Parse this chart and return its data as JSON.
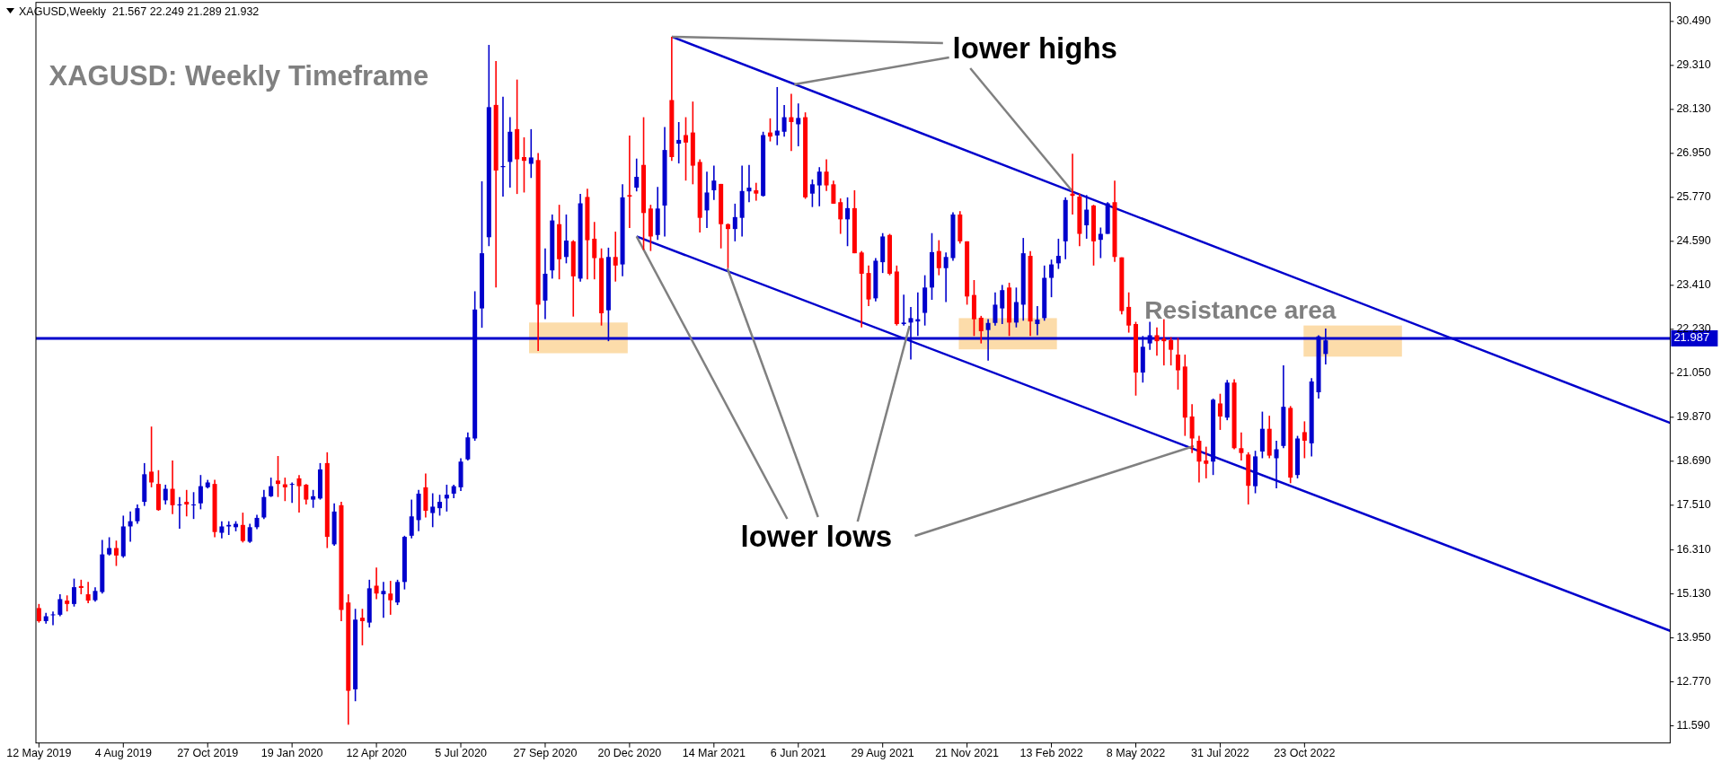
{
  "chart_data": {
    "type": "candlestick",
    "title": "XAGUSD: Weekly Timeframe",
    "subtitle": "XAGUSD,Weekly  21.567 22.249 21.289 21.932",
    "annotations": [
      {
        "text": "lower highs",
        "x": "2021-01-31",
        "y": 30.08
      },
      {
        "text": "lower lows",
        "x": "2020-12-27",
        "y": 24.72
      },
      "Resistance area"
    ],
    "x": [
      "2019-05-12",
      "2019-05-19",
      "2019-05-26",
      "2019-06-02",
      "2019-06-09",
      "2019-06-16",
      "2019-06-23",
      "2019-06-30",
      "2019-07-07",
      "2019-07-14",
      "2019-07-21",
      "2019-07-28",
      "2019-08-04",
      "2019-08-11",
      "2019-08-18",
      "2019-08-25",
      "2019-09-01",
      "2019-09-08",
      "2019-09-15",
      "2019-09-22",
      "2019-09-29",
      "2019-10-06",
      "2019-10-13",
      "2019-10-20",
      "2019-10-27",
      "2019-11-03",
      "2019-11-10",
      "2019-11-17",
      "2019-11-24",
      "2019-12-01",
      "2019-12-08",
      "2019-12-15",
      "2019-12-22",
      "2019-12-29",
      "2020-01-05",
      "2020-01-12",
      "2020-01-19",
      "2020-01-26",
      "2020-02-02",
      "2020-02-09",
      "2020-02-16",
      "2020-02-23",
      "2020-03-01",
      "2020-03-08",
      "2020-03-15",
      "2020-03-22",
      "2020-03-29",
      "2020-04-05",
      "2020-04-12",
      "2020-04-19",
      "2020-04-26",
      "2020-05-03",
      "2020-05-10",
      "2020-05-17",
      "2020-05-24",
      "2020-05-31",
      "2020-06-07",
      "2020-06-14",
      "2020-06-21",
      "2020-06-28",
      "2020-07-05",
      "2020-07-12",
      "2020-07-19",
      "2020-07-26",
      "2020-08-02",
      "2020-08-09",
      "2020-08-16",
      "2020-08-23",
      "2020-08-30",
      "2020-09-06",
      "2020-09-13",
      "2020-09-20",
      "2020-09-27",
      "2020-10-04",
      "2020-10-11",
      "2020-10-18",
      "2020-10-25",
      "2020-11-01",
      "2020-11-08",
      "2020-11-15",
      "2020-11-22",
      "2020-11-29",
      "2020-12-06",
      "2020-12-13",
      "2020-12-20",
      "2020-12-27",
      "2021-01-03",
      "2021-01-10",
      "2021-01-17",
      "2021-01-24",
      "2021-01-31",
      "2021-02-07",
      "2021-02-14",
      "2021-02-21",
      "2021-02-28",
      "2021-03-07",
      "2021-03-14",
      "2021-03-21",
      "2021-03-28",
      "2021-04-04",
      "2021-04-11",
      "2021-04-18",
      "2021-04-25",
      "2021-05-02",
      "2021-05-09",
      "2021-05-16",
      "2021-05-23",
      "2021-05-30",
      "2021-06-06",
      "2021-06-13",
      "2021-06-20",
      "2021-06-27",
      "2021-07-04",
      "2021-07-11",
      "2021-07-18",
      "2021-07-25",
      "2021-08-01",
      "2021-08-08",
      "2021-08-15",
      "2021-08-22",
      "2021-08-29",
      "2021-09-05",
      "2021-09-12",
      "2021-09-19",
      "2021-09-26",
      "2021-10-03",
      "2021-10-10",
      "2021-10-17",
      "2021-10-24",
      "2021-10-31",
      "2021-11-07",
      "2021-11-14",
      "2021-11-21",
      "2021-11-28",
      "2021-12-05",
      "2021-12-12",
      "2021-12-19",
      "2021-12-26",
      "2022-01-02",
      "2022-01-09",
      "2022-01-16",
      "2022-01-23",
      "2022-01-30",
      "2022-02-06",
      "2022-02-13",
      "2022-02-20",
      "2022-02-27",
      "2022-03-06",
      "2022-03-13",
      "2022-03-20",
      "2022-03-27",
      "2022-04-03",
      "2022-04-10",
      "2022-04-17",
      "2022-04-24",
      "2022-05-01",
      "2022-05-08",
      "2022-05-15",
      "2022-05-22",
      "2022-05-29",
      "2022-06-05",
      "2022-06-12",
      "2022-06-19",
      "2022-06-26",
      "2022-07-03",
      "2022-07-10",
      "2022-07-17",
      "2022-07-24",
      "2022-07-31",
      "2022-08-07",
      "2022-08-14",
      "2022-08-21",
      "2022-08-28",
      "2022-09-04",
      "2022-09-11",
      "2022-09-18",
      "2022-09-25",
      "2022-10-02",
      "2022-10-09",
      "2022-10-16",
      "2022-10-23",
      "2022-10-30",
      "2022-11-06",
      "2022-11-13"
    ],
    "ohlc": [
      [
        14.75,
        14.86,
        14.36,
        14.4
      ],
      [
        14.4,
        14.62,
        14.33,
        14.53
      ],
      [
        14.56,
        14.66,
        14.29,
        14.58
      ],
      [
        14.57,
        15.12,
        14.53,
        14.99
      ],
      [
        14.95,
        15.09,
        14.66,
        14.86
      ],
      [
        14.86,
        15.54,
        14.79,
        15.31
      ],
      [
        15.34,
        15.51,
        15.12,
        15.29
      ],
      [
        15.12,
        15.45,
        14.88,
        14.95
      ],
      [
        14.96,
        15.31,
        14.92,
        15.21
      ],
      [
        15.18,
        16.58,
        15.14,
        16.19
      ],
      [
        16.19,
        16.65,
        16.16,
        16.36
      ],
      [
        16.36,
        16.56,
        15.88,
        16.16
      ],
      [
        16.14,
        17.23,
        16.1,
        16.94
      ],
      [
        16.94,
        17.34,
        16.53,
        17.08
      ],
      [
        17.08,
        17.53,
        17.01,
        17.43
      ],
      [
        17.6,
        18.64,
        17.49,
        18.34
      ],
      [
        18.41,
        19.62,
        17.99,
        18.12
      ],
      [
        18.08,
        18.45,
        17.36,
        17.38
      ],
      [
        17.64,
        18.06,
        17.53,
        17.95
      ],
      [
        17.95,
        18.71,
        17.27,
        17.51
      ],
      [
        17.51,
        17.73,
        16.88,
        17.53
      ],
      [
        17.6,
        17.92,
        17.21,
        17.53
      ],
      [
        17.51,
        17.86,
        17.14,
        17.53
      ],
      [
        17.56,
        18.32,
        17.4,
        18.02
      ],
      [
        17.99,
        18.19,
        17.96,
        18.12
      ],
      [
        18.08,
        18.19,
        16.65,
        16.79
      ],
      [
        16.77,
        17.08,
        16.62,
        16.94
      ],
      [
        16.94,
        17.08,
        16.71,
        16.98
      ],
      [
        16.92,
        17.08,
        16.81,
        17.01
      ],
      [
        16.98,
        17.31,
        16.51,
        16.55
      ],
      [
        16.53,
        17.01,
        16.5,
        16.92
      ],
      [
        16.92,
        17.25,
        16.87,
        17.17
      ],
      [
        17.18,
        17.92,
        17.14,
        17.73
      ],
      [
        17.75,
        18.25,
        17.73,
        18.02
      ],
      [
        18.17,
        18.83,
        17.73,
        18.08
      ],
      [
        18.07,
        18.25,
        17.62,
        17.99
      ],
      [
        18.06,
        18.12,
        17.57,
        18.08
      ],
      [
        18.23,
        18.32,
        17.31,
        18.02
      ],
      [
        18.06,
        18.08,
        17.53,
        17.66
      ],
      [
        17.66,
        17.92,
        17.44,
        17.75
      ],
      [
        17.69,
        18.64,
        17.66,
        18.47
      ],
      [
        18.64,
        18.93,
        16.36,
        16.66
      ],
      [
        16.46,
        17.56,
        16.42,
        17.34
      ],
      [
        17.51,
        17.6,
        14.4,
        14.7
      ],
      [
        14.9,
        15.12,
        11.62,
        12.53
      ],
      [
        12.57,
        14.73,
        12.25,
        14.44
      ],
      [
        14.49,
        14.73,
        13.75,
        14.4
      ],
      [
        14.36,
        15.51,
        14.23,
        15.28
      ],
      [
        15.35,
        15.84,
        14.99,
        15.14
      ],
      [
        15.12,
        15.45,
        14.49,
        15.21
      ],
      [
        15.14,
        15.48,
        14.57,
        14.96
      ],
      [
        14.9,
        15.51,
        14.83,
        15.45
      ],
      [
        15.45,
        16.69,
        15.25,
        16.66
      ],
      [
        16.69,
        17.66,
        16.62,
        17.21
      ],
      [
        17.11,
        17.92,
        16.81,
        17.82
      ],
      [
        17.99,
        18.36,
        17.18,
        17.36
      ],
      [
        17.3,
        17.83,
        16.92,
        17.47
      ],
      [
        17.43,
        17.79,
        17.23,
        17.6
      ],
      [
        17.69,
        18.06,
        17.34,
        17.79
      ],
      [
        17.82,
        18.06,
        17.7,
        18.02
      ],
      [
        17.99,
        18.77,
        17.89,
        18.68
      ],
      [
        18.74,
        19.46,
        18.71,
        19.33
      ],
      [
        19.3,
        23.25,
        19.24,
        22.76
      ],
      [
        22.79,
        26.2,
        22.27,
        24.27
      ],
      [
        24.7,
        29.86,
        24.46,
        28.19
      ],
      [
        28.25,
        29.43,
        23.35,
        26.49
      ],
      [
        26.58,
        28.47,
        25.79,
        26.61
      ],
      [
        26.72,
        27.92,
        26.03,
        27.53
      ],
      [
        27.6,
        28.93,
        25.86,
        26.79
      ],
      [
        26.85,
        27.38,
        25.9,
        26.75
      ],
      [
        26.67,
        27.6,
        26.29,
        26.84
      ],
      [
        26.77,
        26.96,
        21.65,
        22.89
      ],
      [
        23.0,
        24.4,
        22.5,
        23.72
      ],
      [
        23.81,
        25.31,
        23.59,
        25.15
      ],
      [
        25.05,
        25.57,
        23.57,
        24.11
      ],
      [
        24.17,
        25.31,
        24.0,
        24.61
      ],
      [
        24.59,
        24.62,
        22.57,
        23.65
      ],
      [
        23.59,
        25.86,
        23.51,
        25.61
      ],
      [
        25.78,
        26.0,
        23.57,
        24.62
      ],
      [
        24.66,
        25.11,
        23.57,
        24.14
      ],
      [
        24.14,
        24.4,
        22.33,
        22.66
      ],
      [
        22.74,
        24.42,
        21.91,
        24.17
      ],
      [
        24.17,
        24.85,
        23.51,
        23.94
      ],
      [
        23.97,
        26.12,
        23.65,
        25.77
      ],
      [
        25.83,
        27.43,
        24.95,
        25.79
      ],
      [
        26.03,
        26.81,
        25.93,
        26.32
      ],
      [
        26.64,
        27.92,
        24.36,
        25.35
      ],
      [
        25.47,
        25.57,
        24.33,
        24.72
      ],
      [
        24.76,
        26.05,
        24.63,
        25.47
      ],
      [
        25.55,
        27.66,
        24.72,
        27.04
      ],
      [
        28.38,
        30.08,
        26.75,
        26.85
      ],
      [
        27.21,
        27.79,
        26.68,
        27.31
      ],
      [
        27.44,
        27.92,
        26.22,
        27.24
      ],
      [
        27.51,
        28.34,
        26.12,
        26.62
      ],
      [
        26.72,
        26.79,
        24.83,
        25.22
      ],
      [
        25.42,
        26.46,
        24.95,
        25.9
      ],
      [
        25.96,
        26.62,
        25.7,
        26.22
      ],
      [
        26.13,
        26.13,
        24.4,
        25.05
      ],
      [
        25.05,
        25.07,
        23.87,
        24.92
      ],
      [
        24.92,
        25.6,
        24.59,
        25.24
      ],
      [
        25.22,
        26.62,
        24.72,
        25.94
      ],
      [
        25.93,
        26.64,
        25.64,
        26.03
      ],
      [
        25.96,
        26.16,
        25.68,
        25.87
      ],
      [
        25.81,
        27.53,
        25.79,
        27.44
      ],
      [
        27.51,
        27.89,
        27.27,
        27.4
      ],
      [
        27.43,
        28.73,
        27.17,
        27.56
      ],
      [
        27.53,
        28.25,
        27.4,
        27.92
      ],
      [
        27.92,
        28.55,
        27.01,
        27.79
      ],
      [
        27.73,
        28.29,
        27.14,
        27.9
      ],
      [
        27.92,
        28.05,
        25.73,
        25.77
      ],
      [
        25.87,
        26.25,
        25.51,
        26.12
      ],
      [
        26.09,
        26.58,
        25.53,
        26.46
      ],
      [
        26.46,
        26.79,
        25.94,
        26.09
      ],
      [
        26.12,
        26.22,
        25.6,
        25.6
      ],
      [
        25.64,
        25.74,
        24.79,
        25.18
      ],
      [
        25.18,
        25.77,
        24.46,
        25.48
      ],
      [
        25.48,
        25.96,
        24.27,
        24.27
      ],
      [
        24.29,
        24.33,
        22.28,
        23.72
      ],
      [
        23.74,
        23.94,
        22.85,
        23.03
      ],
      [
        23.06,
        24.14,
        22.98,
        24.07
      ],
      [
        24.03,
        24.81,
        23.74,
        24.72
      ],
      [
        24.76,
        24.79,
        23.68,
        23.72
      ],
      [
        23.78,
        23.94,
        22.33,
        22.37
      ],
      [
        22.37,
        23.16,
        22.33,
        22.41
      ],
      [
        22.41,
        22.83,
        21.42,
        22.53
      ],
      [
        22.44,
        23.22,
        22.05,
        22.5
      ],
      [
        22.67,
        23.68,
        22.33,
        23.35
      ],
      [
        23.35,
        24.81,
        23.02,
        24.3
      ],
      [
        24.33,
        24.62,
        23.68,
        23.87
      ],
      [
        23.87,
        24.29,
        22.96,
        24.17
      ],
      [
        24.14,
        25.37,
        24.07,
        25.31
      ],
      [
        25.31,
        25.4,
        24.53,
        24.59
      ],
      [
        24.59,
        24.59,
        22.89,
        23.11
      ],
      [
        23.15,
        23.55,
        22.05,
        22.5
      ],
      [
        22.54,
        22.59,
        21.85,
        22.18
      ],
      [
        22.21,
        22.5,
        21.39,
        22.4
      ],
      [
        22.4,
        23.22,
        22.33,
        22.89
      ],
      [
        22.79,
        23.42,
        22.37,
        23.28
      ],
      [
        23.35,
        23.48,
        22.05,
        22.41
      ],
      [
        22.41,
        23.35,
        22.28,
        22.96
      ],
      [
        22.89,
        24.68,
        22.46,
        24.27
      ],
      [
        24.2,
        24.33,
        22.05,
        22.44
      ],
      [
        22.37,
        22.85,
        22.07,
        22.49
      ],
      [
        22.53,
        23.94,
        22.46,
        23.61
      ],
      [
        23.61,
        24.1,
        23.09,
        23.97
      ],
      [
        24.0,
        24.66,
        23.85,
        24.2
      ],
      [
        24.59,
        25.77,
        24.11,
        25.7
      ],
      [
        25.87,
        26.94,
        25.31,
        25.81
      ],
      [
        25.79,
        25.87,
        24.46,
        24.79
      ],
      [
        25.02,
        25.83,
        24.66,
        25.44
      ],
      [
        25.55,
        25.57,
        23.94,
        24.59
      ],
      [
        24.63,
        24.96,
        24.14,
        24.79
      ],
      [
        24.79,
        25.64,
        24.79,
        25.61
      ],
      [
        25.64,
        26.22,
        24.04,
        24.17
      ],
      [
        24.16,
        24.16,
        22.63,
        22.72
      ],
      [
        22.83,
        23.22,
        22.14,
        22.33
      ],
      [
        22.37,
        22.43,
        20.45,
        21.07
      ],
      [
        21.07,
        22.05,
        20.8,
        21.76
      ],
      [
        21.85,
        22.43,
        21.68,
        22.07
      ],
      [
        22.07,
        22.28,
        21.52,
        21.91
      ],
      [
        21.98,
        22.5,
        21.26,
        21.91
      ],
      [
        21.94,
        22.02,
        21.26,
        21.68
      ],
      [
        21.55,
        22.0,
        20.61,
        21.13
      ],
      [
        21.23,
        21.55,
        19.37,
        19.86
      ],
      [
        19.89,
        20.22,
        18.91,
        19.3
      ],
      [
        19.24,
        19.37,
        18.12,
        18.68
      ],
      [
        18.71,
        19.08,
        18.23,
        18.62
      ],
      [
        18.68,
        20.37,
        18.32,
        20.34
      ],
      [
        20.24,
        20.5,
        19.53,
        19.89
      ],
      [
        19.86,
        20.87,
        19.79,
        20.8
      ],
      [
        20.8,
        20.89,
        19.01,
        19.04
      ],
      [
        19.04,
        19.46,
        18.71,
        18.91
      ],
      [
        18.87,
        18.93,
        17.53,
        18.03
      ],
      [
        18.02,
        18.97,
        17.83,
        18.82
      ],
      [
        18.95,
        20.02,
        18.77,
        19.56
      ],
      [
        19.56,
        19.91,
        18.77,
        18.84
      ],
      [
        18.77,
        19.24,
        17.96,
        19.01
      ],
      [
        19.1,
        21.26,
        19.04,
        20.15
      ],
      [
        20.12,
        20.17,
        18.1,
        18.25
      ],
      [
        18.32,
        19.37,
        18.23,
        19.3
      ],
      [
        19.47,
        19.76,
        18.77,
        19.24
      ],
      [
        19.17,
        20.92,
        18.82,
        20.83
      ],
      [
        20.54,
        22.07,
        20.37,
        22.04
      ],
      [
        21.567,
        22.249,
        21.289,
        21.932
      ]
    ],
    "colors": [
      "#ff0000",
      "#0000cc",
      "#0000cc",
      "#0000cc",
      "#ff0000",
      "#0000cc",
      "#ff0000",
      "#ff0000",
      "#0000cc",
      "#0000cc",
      "#0000cc",
      "#ff0000",
      "#0000cc",
      "#0000cc",
      "#0000cc",
      "#0000cc",
      "#ff0000",
      "#ff0000",
      "#0000cc",
      "#ff0000",
      "#0000cc",
      "#ff0000",
      "#0000cc",
      "#0000cc",
      "#0000cc",
      "#ff0000",
      "#0000cc",
      "#0000cc",
      "#0000cc",
      "#ff0000",
      "#0000cc",
      "#0000cc",
      "#0000cc",
      "#0000cc",
      "#ff0000",
      "#ff0000",
      "#0000cc",
      "#ff0000",
      "#ff0000",
      "#0000cc",
      "#0000cc",
      "#ff0000",
      "#0000cc",
      "#ff0000",
      "#ff0000",
      "#0000cc",
      "#ff0000",
      "#0000cc",
      "#ff0000",
      "#0000cc",
      "#ff0000",
      "#0000cc",
      "#0000cc",
      "#0000cc",
      "#0000cc",
      "#ff0000",
      "#0000cc",
      "#0000cc",
      "#0000cc",
      "#0000cc",
      "#0000cc",
      "#0000cc",
      "#0000cc",
      "#0000cc",
      "#0000cc",
      "#ff0000",
      "#0000cc",
      "#0000cc",
      "#ff0000",
      "#ff0000",
      "#0000cc",
      "#ff0000",
      "#0000cc",
      "#0000cc",
      "#ff0000",
      "#0000cc",
      "#ff0000",
      "#0000cc",
      "#ff0000",
      "#ff0000",
      "#ff0000",
      "#0000cc",
      "#ff0000",
      "#0000cc",
      "#ff0000",
      "#0000cc",
      "#ff0000",
      "#ff0000",
      "#0000cc",
      "#0000cc",
      "#ff0000",
      "#0000cc",
      "#ff0000",
      "#ff0000",
      "#ff0000",
      "#0000cc",
      "#0000cc",
      "#ff0000",
      "#ff0000",
      "#0000cc",
      "#0000cc",
      "#0000cc",
      "#ff0000",
      "#0000cc",
      "#ff0000",
      "#0000cc",
      "#0000cc",
      "#ff0000",
      "#0000cc",
      "#ff0000",
      "#0000cc",
      "#0000cc",
      "#ff0000",
      "#ff0000",
      "#ff0000",
      "#0000cc",
      "#ff0000",
      "#ff0000",
      "#ff0000",
      "#0000cc",
      "#0000cc",
      "#ff0000",
      "#ff0000",
      "#0000cc",
      "#0000cc",
      "#0000cc",
      "#0000cc",
      "#0000cc",
      "#ff0000",
      "#0000cc",
      "#0000cc",
      "#ff0000",
      "#ff0000",
      "#ff0000",
      "#ff0000",
      "#0000cc",
      "#0000cc",
      "#0000cc",
      "#ff0000",
      "#0000cc",
      "#0000cc",
      "#ff0000",
      "#0000cc",
      "#0000cc",
      "#0000cc",
      "#0000cc",
      "#0000cc",
      "#ff0000",
      "#ff0000",
      "#0000cc",
      "#ff0000",
      "#0000cc",
      "#0000cc",
      "#ff0000",
      "#ff0000",
      "#ff0000",
      "#ff0000",
      "#0000cc",
      "#0000cc",
      "#ff0000",
      "#ff0000",
      "#ff0000",
      "#ff0000",
      "#ff0000",
      "#ff0000",
      "#ff0000",
      "#ff0000",
      "#0000cc",
      "#ff0000",
      "#0000cc",
      "#ff0000",
      "#ff0000",
      "#ff0000",
      "#0000cc",
      "#0000cc",
      "#ff0000",
      "#0000cc",
      "#0000cc",
      "#ff0000",
      "#0000cc",
      "#ff0000",
      "#0000cc",
      "#0000cc",
      "#0000cc"
    ],
    "series": [
      {
        "type": "line",
        "color": "#0000cc",
        "x": [
          "2021-01-31",
          "2023-10-22"
        ],
        "values": [
          30.08,
          19.72
        ]
      },
      {
        "type": "line",
        "color": "#0000cc",
        "x": [
          "2020-12-27",
          "2023-10-22"
        ],
        "values": [
          24.72,
          14.14
        ]
      }
    ],
    "xlim": [
      "2019-05-09",
      "2023-10-22"
    ],
    "xticks": [
      {
        "value": "2019-05-12",
        "label": "12 May 2019"
      },
      {
        "value": "2019-08-04",
        "label": "4 Aug 2019"
      },
      {
        "value": "2019-10-27",
        "label": "27 Oct 2019"
      },
      {
        "value": "2020-01-19",
        "label": "19 Jan 2020"
      },
      {
        "value": "2020-04-12",
        "label": "12 Apr 2020"
      },
      {
        "value": "2020-07-05",
        "label": "5 Jul 2020"
      },
      {
        "value": "2020-09-27",
        "label": "27 Sep 2020"
      },
      {
        "value": "2020-12-20",
        "label": "20 Dec 2020"
      },
      {
        "value": "2021-03-14",
        "label": "14 Mar 2021"
      },
      {
        "value": "2021-06-06",
        "label": "6 Jun 2021"
      },
      {
        "value": "2021-08-29",
        "label": "29 Aug 2021"
      },
      {
        "value": "2021-11-21",
        "label": "21 Nov 2021"
      },
      {
        "value": "2022-02-13",
        "label": "13 Feb 2022"
      },
      {
        "value": "2022-05-08",
        "label": "8 May 2022"
      },
      {
        "value": "2022-07-31",
        "label": "31 Jul 2022"
      },
      {
        "value": "2022-10-23",
        "label": "23 Oct 2022"
      }
    ],
    "ylim": [
      11.13,
      31.0
    ],
    "yticks": [
      {
        "value": 30.49,
        "label": "30.490"
      },
      {
        "value": 29.31,
        "label": "29.310"
      },
      {
        "value": 28.13,
        "label": "28.130"
      },
      {
        "value": 26.95,
        "label": "26.950"
      },
      {
        "value": 25.77,
        "label": "25.770"
      },
      {
        "value": 24.59,
        "label": "24.590"
      },
      {
        "value": 23.41,
        "label": "23.410"
      },
      {
        "value": 22.23,
        "label": "22.230"
      },
      {
        "value": 21.05,
        "label": "21.050"
      },
      {
        "value": 19.87,
        "label": "19.870"
      },
      {
        "value": 18.69,
        "label": "18.690"
      },
      {
        "value": 17.51,
        "label": "17.510"
      },
      {
        "value": 16.31,
        "label": "16.310"
      },
      {
        "value": 15.13,
        "label": "15.130"
      },
      {
        "value": 13.95,
        "label": "13.950"
      },
      {
        "value": 12.77,
        "label": "12.770"
      },
      {
        "value": 11.59,
        "label": "11.590"
      }
    ],
    "ref_lines": [
      {
        "axis": "y",
        "value": 21.987,
        "label": "21.987",
        "color": "#0000cc"
      }
    ]
  }
}
